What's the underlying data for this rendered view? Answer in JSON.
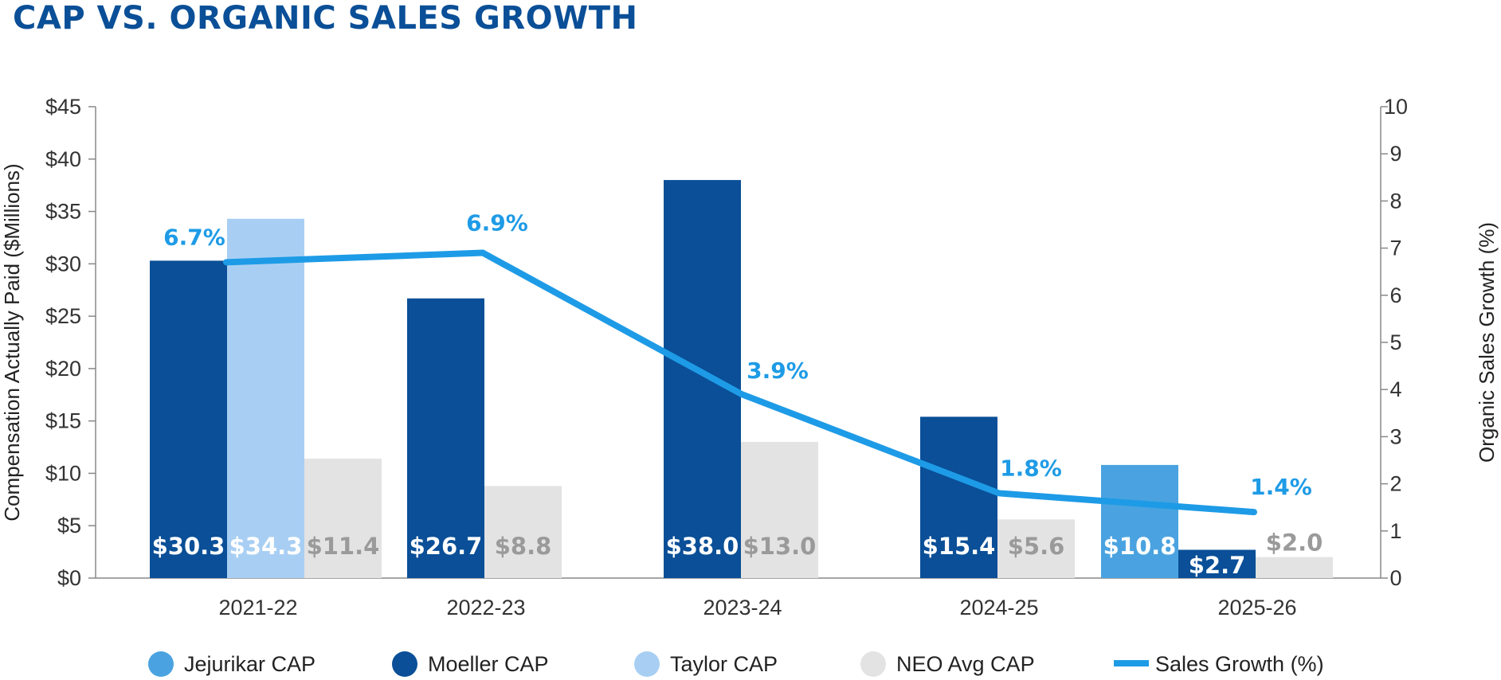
{
  "title": "CAP VS. ORGANIC SALES GROWTH",
  "chart_data": {
    "type": "bar",
    "categories": [
      "2021-22",
      "2022-23",
      "2023-24",
      "2024-25",
      "2025-26"
    ],
    "ylabel": "Compensation Actually Paid ($Millions)",
    "y2label": "Organic Sales Growth (%)",
    "ylim": [
      0,
      45
    ],
    "y2lim": [
      0,
      10
    ],
    "y_ticks": [
      "$0",
      "$5",
      "$10",
      "$15",
      "$20",
      "$25",
      "$30",
      "$35",
      "$40",
      "$45"
    ],
    "y2_ticks": [
      "0",
      "1",
      "2",
      "3",
      "4",
      "5",
      "6",
      "7",
      "8",
      "9",
      "10"
    ],
    "legend_position": "bottom",
    "series": [
      {
        "name": "Jejurikar CAP",
        "color": "#4aa3e0",
        "values": [
          null,
          null,
          null,
          null,
          10.8
        ],
        "labels": [
          "",
          "",
          "",
          "",
          "$10.8"
        ]
      },
      {
        "name": "Moeller CAP",
        "color": "#0a4f97",
        "values": [
          30.3,
          26.7,
          38.0,
          15.4,
          2.7
        ],
        "labels": [
          "$30.3",
          "$26.7",
          "$38.0",
          "$15.4",
          "$2.7"
        ]
      },
      {
        "name": "Taylor CAP",
        "color": "#a8cff3",
        "values": [
          34.3,
          null,
          null,
          null,
          null
        ],
        "labels": [
          "$34.3",
          "",
          "",
          "",
          ""
        ]
      },
      {
        "name": "NEO Avg CAP",
        "color": "#e3e3e3",
        "values": [
          11.4,
          8.8,
          13.0,
          5.6,
          2.0
        ],
        "labels": [
          "$11.4",
          "$8.8",
          "$13.0",
          "$5.6",
          "$2.0"
        ]
      }
    ],
    "line": {
      "name": "Sales Growth (%)",
      "color": "#1e9be6",
      "axis": "right",
      "values": [
        6.7,
        6.9,
        3.9,
        1.8,
        1.4
      ],
      "labels": [
        "6.7%",
        "6.9%",
        "3.9%",
        "1.8%",
        "1.4%"
      ]
    }
  }
}
